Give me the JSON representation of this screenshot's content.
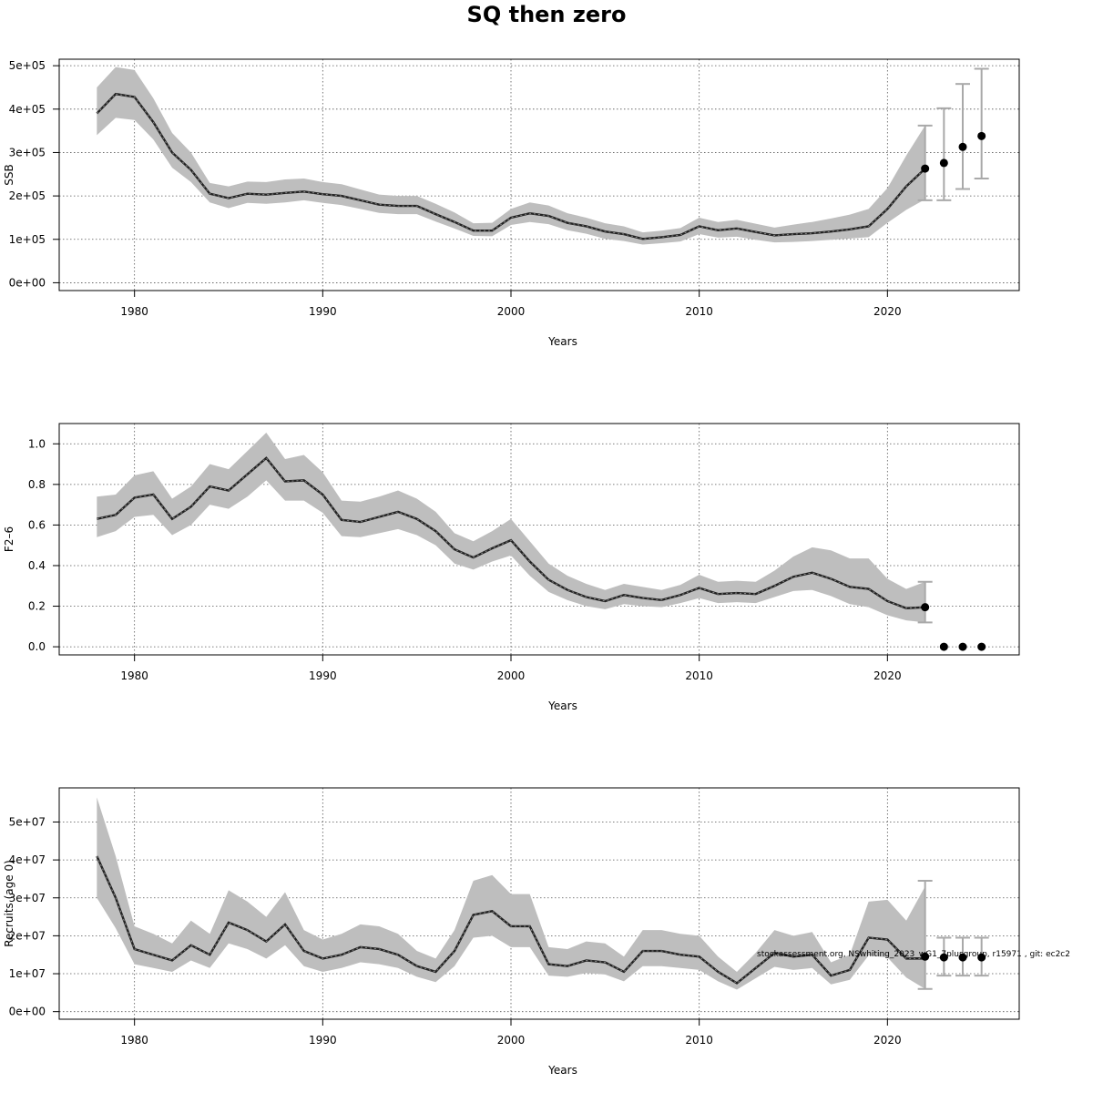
{
  "title": "SQ then zero",
  "footnote": "stockassessment.org, NSwhiting_2023_wG1_7plusgroup, r15971 , git: ec2c2",
  "colors": {
    "band": "#bebebe",
    "line": "#222222",
    "point": "#000000",
    "errorbar": "#a9a9a9",
    "grid": "#555555"
  },
  "chart_data": [
    {
      "type": "line",
      "ylabel": "SSB",
      "xlabel": "Years",
      "xlim": [
        1976,
        2027
      ],
      "ylim": [
        -18000,
        515000
      ],
      "xticks": [
        1980,
        1990,
        2000,
        2010,
        2020
      ],
      "yticks": [
        0,
        100000,
        200000,
        300000,
        400000,
        500000
      ],
      "yticklabels": [
        "0e+00",
        "1e+05",
        "2e+05",
        "3e+05",
        "4e+05",
        "5e+05"
      ],
      "grid": true,
      "x": [
        1978,
        1979,
        1980,
        1981,
        1982,
        1983,
        1984,
        1985,
        1986,
        1987,
        1988,
        1989,
        1990,
        1991,
        1992,
        1993,
        1994,
        1995,
        1996,
        1997,
        1998,
        1999,
        2000,
        2001,
        2002,
        2003,
        2004,
        2005,
        2006,
        2007,
        2008,
        2009,
        2010,
        2011,
        2012,
        2013,
        2014,
        2015,
        2016,
        2017,
        2018,
        2019,
        2020,
        2021,
        2022
      ],
      "estimate": [
        390000,
        435000,
        428000,
        370000,
        300000,
        260000,
        205000,
        195000,
        205000,
        203000,
        207000,
        210000,
        204000,
        200000,
        190000,
        180000,
        177000,
        177000,
        158000,
        140000,
        120000,
        120000,
        150000,
        160000,
        154000,
        138000,
        130000,
        118000,
        112000,
        101000,
        105000,
        110000,
        130000,
        121000,
        125000,
        117000,
        109000,
        112000,
        114000,
        118000,
        123000,
        130000,
        170000,
        222000,
        263000
      ],
      "lower": [
        340000,
        380000,
        375000,
        330000,
        265000,
        232000,
        185000,
        172000,
        184000,
        182000,
        185000,
        190000,
        184000,
        179000,
        170000,
        161000,
        158000,
        158000,
        141000,
        125000,
        108000,
        107000,
        133000,
        140000,
        135000,
        121000,
        113000,
        101000,
        96000,
        88000,
        91000,
        95000,
        112000,
        104000,
        106000,
        99000,
        93000,
        94000,
        96000,
        99000,
        102000,
        105000,
        138000,
        168000,
        192000
      ],
      "upper": [
        450000,
        497000,
        490000,
        425000,
        345000,
        300000,
        230000,
        222000,
        233000,
        232000,
        238000,
        240000,
        232000,
        227000,
        215000,
        203000,
        200000,
        200000,
        182000,
        162000,
        137000,
        138000,
        170000,
        185000,
        178000,
        160000,
        150000,
        137000,
        130000,
        116000,
        120000,
        126000,
        150000,
        140000,
        145000,
        136000,
        127000,
        134000,
        140000,
        148000,
        157000,
        170000,
        218000,
        293000,
        362000
      ],
      "projection": {
        "x": [
          2022,
          2023,
          2024,
          2025
        ],
        "median": [
          263000,
          276000,
          313000,
          338000
        ],
        "low": [
          190000,
          190000,
          216000,
          240000
        ],
        "high": [
          362000,
          402000,
          458000,
          493000
        ]
      }
    },
    {
      "type": "line",
      "ylabel": "F2–6",
      "xlabel": "Years",
      "xlim": [
        1976,
        2027
      ],
      "ylim": [
        -0.04,
        1.1
      ],
      "xticks": [
        1980,
        1990,
        2000,
        2010,
        2020
      ],
      "yticks": [
        0,
        0.2,
        0.4,
        0.6,
        0.8,
        1.0
      ],
      "yticklabels": [
        "0.0",
        "0.2",
        "0.4",
        "0.6",
        "0.8",
        "1.0"
      ],
      "grid": true,
      "x": [
        1978,
        1979,
        1980,
        1981,
        1982,
        1983,
        1984,
        1985,
        1986,
        1987,
        1988,
        1989,
        1990,
        1991,
        1992,
        1993,
        1994,
        1995,
        1996,
        1997,
        1998,
        1999,
        2000,
        2001,
        2002,
        2003,
        2004,
        2005,
        2006,
        2007,
        2008,
        2009,
        2010,
        2011,
        2012,
        2013,
        2014,
        2015,
        2016,
        2017,
        2018,
        2019,
        2020,
        2021,
        2022
      ],
      "estimate": [
        0.63,
        0.65,
        0.735,
        0.75,
        0.63,
        0.69,
        0.79,
        0.77,
        0.85,
        0.93,
        0.815,
        0.82,
        0.75,
        0.625,
        0.615,
        0.64,
        0.665,
        0.63,
        0.57,
        0.48,
        0.44,
        0.485,
        0.525,
        0.42,
        0.33,
        0.28,
        0.245,
        0.225,
        0.255,
        0.24,
        0.23,
        0.255,
        0.29,
        0.26,
        0.265,
        0.26,
        0.3,
        0.345,
        0.365,
        0.335,
        0.295,
        0.285,
        0.225,
        0.19,
        0.195
      ],
      "lower": [
        0.54,
        0.57,
        0.64,
        0.65,
        0.55,
        0.6,
        0.7,
        0.68,
        0.74,
        0.82,
        0.72,
        0.72,
        0.66,
        0.545,
        0.54,
        0.56,
        0.58,
        0.55,
        0.5,
        0.41,
        0.38,
        0.42,
        0.45,
        0.35,
        0.27,
        0.23,
        0.2,
        0.185,
        0.21,
        0.2,
        0.195,
        0.215,
        0.24,
        0.215,
        0.22,
        0.215,
        0.245,
        0.275,
        0.28,
        0.25,
        0.21,
        0.195,
        0.155,
        0.13,
        0.12
      ],
      "upper": [
        0.74,
        0.75,
        0.845,
        0.865,
        0.73,
        0.79,
        0.9,
        0.875,
        0.965,
        1.055,
        0.925,
        0.945,
        0.86,
        0.72,
        0.715,
        0.74,
        0.77,
        0.73,
        0.665,
        0.56,
        0.52,
        0.57,
        0.63,
        0.52,
        0.41,
        0.35,
        0.31,
        0.28,
        0.31,
        0.295,
        0.28,
        0.305,
        0.355,
        0.32,
        0.325,
        0.32,
        0.375,
        0.445,
        0.49,
        0.475,
        0.435,
        0.435,
        0.335,
        0.285,
        0.32
      ],
      "projection": {
        "x": [
          2022,
          2023,
          2024,
          2025
        ],
        "median": [
          0.195,
          0,
          0,
          0
        ],
        "low": [
          0.12,
          null,
          null,
          null
        ],
        "high": [
          0.32,
          null,
          null,
          null
        ]
      }
    },
    {
      "type": "line",
      "ylabel": "Recruits (age 0)",
      "xlabel": "Years",
      "xlim": [
        1976,
        2027
      ],
      "ylim": [
        -2000000,
        59000000
      ],
      "xticks": [
        1980,
        1990,
        2000,
        2010,
        2020
      ],
      "yticks": [
        0,
        10000000,
        20000000,
        30000000,
        40000000,
        50000000
      ],
      "yticklabels": [
        "0e+00",
        "1e+07",
        "2e+07",
        "3e+07",
        "4e+07",
        "5e+07"
      ],
      "grid": true,
      "x": [
        1978,
        1979,
        1980,
        1981,
        1982,
        1983,
        1984,
        1985,
        1986,
        1987,
        1988,
        1989,
        1990,
        1991,
        1992,
        1993,
        1994,
        1995,
        1996,
        1997,
        1998,
        1999,
        2000,
        2001,
        2002,
        2003,
        2004,
        2005,
        2006,
        2007,
        2008,
        2009,
        2010,
        2011,
        2012,
        2013,
        2014,
        2015,
        2016,
        2017,
        2018,
        2019,
        2020,
        2021,
        2022
      ],
      "estimate": [
        41000000,
        30000000,
        16500000,
        15000000,
        13500000,
        17500000,
        15000000,
        23500000,
        21500000,
        18500000,
        23000000,
        16000000,
        14000000,
        15000000,
        17000000,
        16500000,
        15000000,
        12000000,
        10500000,
        16000000,
        25500000,
        26500000,
        22500000,
        22500000,
        12500000,
        12000000,
        13500000,
        13000000,
        10500000,
        16000000,
        16000000,
        15000000,
        14500000,
        10500000,
        7500000,
        11500000,
        15500000,
        14500000,
        15000000,
        9500000,
        11000000,
        19500000,
        19000000,
        14000000,
        14000000
      ],
      "lower": [
        30000000,
        22000000,
        12500000,
        11500000,
        10500000,
        13500000,
        11500000,
        18000000,
        16500000,
        14000000,
        17500000,
        12000000,
        10500000,
        11500000,
        13000000,
        12500000,
        11500000,
        9200000,
        7800000,
        12000000,
        19500000,
        20000000,
        17000000,
        17000000,
        9500000,
        9200000,
        10200000,
        9800000,
        8000000,
        12000000,
        12000000,
        11500000,
        11000000,
        8000000,
        5800000,
        8800000,
        11800000,
        11000000,
        11500000,
        7200000,
        8400000,
        14800000,
        14300000,
        9000000,
        6000000
      ],
      "upper": [
        56500000,
        41000000,
        22500000,
        20500000,
        18000000,
        24000000,
        20500000,
        32000000,
        29000000,
        25000000,
        31500000,
        21500000,
        19000000,
        20500000,
        23000000,
        22500000,
        20500000,
        16000000,
        14000000,
        21500000,
        34500000,
        36000000,
        31000000,
        31000000,
        17000000,
        16500000,
        18500000,
        18000000,
        14500000,
        21500000,
        21500000,
        20500000,
        20000000,
        14500000,
        10500000,
        15500000,
        21500000,
        20000000,
        21000000,
        13000000,
        15000000,
        29000000,
        29500000,
        24000000,
        33000000
      ],
      "projection": {
        "x": [
          2022,
          2023,
          2024,
          2025
        ],
        "median": [
          14500000,
          14300000,
          14300000,
          14300000
        ],
        "low": [
          6000000,
          9500000,
          9500000,
          9500000
        ],
        "high": [
          34500000,
          19500000,
          19500000,
          19500000
        ]
      }
    }
  ]
}
